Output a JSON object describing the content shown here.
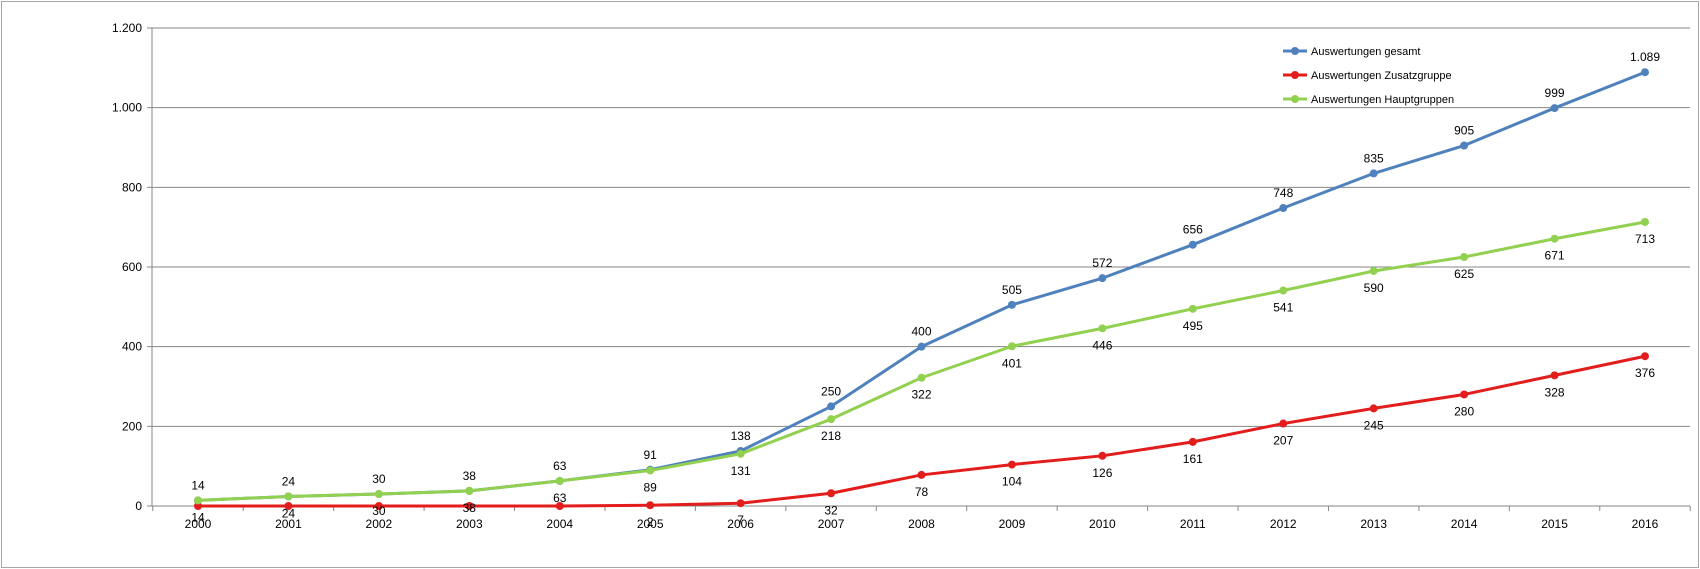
{
  "chart_data": {
    "type": "line",
    "title": "",
    "xlabel": "",
    "ylabel": "",
    "x": [
      "2000",
      "2001",
      "2002",
      "2003",
      "2004",
      "2005",
      "2006",
      "2007",
      "2008",
      "2009",
      "2010",
      "2011",
      "2012",
      "2013",
      "2014",
      "2015",
      "2016"
    ],
    "ylim": [
      0,
      1200
    ],
    "yticks": [
      0,
      200,
      400,
      600,
      800,
      1000,
      1200
    ],
    "ytick_labels": [
      "0",
      "200",
      "400",
      "600",
      "800",
      "1.000",
      "1.200"
    ],
    "grid": "horizontal",
    "legend_position": "top-right",
    "series": [
      {
        "name": "Auswertungen gesamt",
        "color": "#4f81bd",
        "values": [
          14,
          24,
          30,
          38,
          63,
          91,
          138,
          250,
          400,
          505,
          572,
          656,
          748,
          835,
          905,
          999,
          1089
        ],
        "labels": [
          "14",
          "24",
          "30",
          "38",
          "63",
          "91",
          "138",
          "250",
          "400",
          "505",
          "572",
          "656",
          "748",
          "835",
          "905",
          "999",
          "1.089"
        ],
        "label_position": "above"
      },
      {
        "name": "Auswertungen Zusatzgruppe",
        "color": "#e31c1c",
        "values": [
          0,
          0,
          0,
          0,
          0,
          2,
          7,
          32,
          78,
          104,
          126,
          161,
          207,
          245,
          280,
          328,
          376
        ],
        "labels": [
          "",
          "",
          "",
          "",
          "",
          "2",
          "7",
          "32",
          "78",
          "104",
          "126",
          "161",
          "207",
          "245",
          "280",
          "328",
          "376"
        ],
        "label_position": "below"
      },
      {
        "name": "Auswertungen Hauptgruppen",
        "color": "#92d050",
        "values": [
          14,
          24,
          30,
          38,
          63,
          89,
          131,
          218,
          322,
          401,
          446,
          495,
          541,
          590,
          625,
          671,
          713
        ],
        "labels": [
          "14",
          "24",
          "30",
          "38",
          "63",
          "89",
          "131",
          "218",
          "322",
          "401",
          "446",
          "495",
          "541",
          "590",
          "625",
          "671",
          "713"
        ],
        "label_position": "below"
      }
    ]
  }
}
